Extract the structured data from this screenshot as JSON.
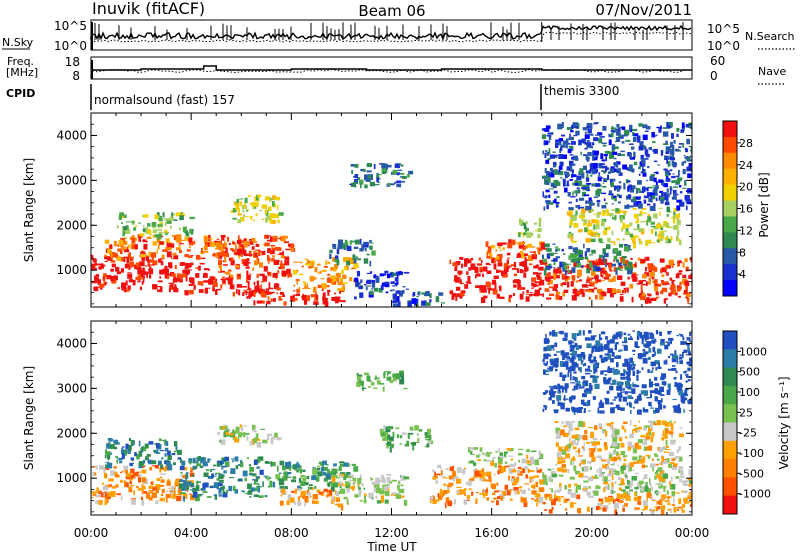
{
  "header": {
    "station": "Inuvik (fitACF)",
    "beam": "Beam 06",
    "date": "07/Nov/2011"
  },
  "top_panels": {
    "nsky_label": "N.Sky",
    "nsky_ticks": [
      "10^5",
      "10^0"
    ],
    "nsearch_label": "N.Search",
    "nsearch_ticks": [
      "10^5",
      "10^0"
    ],
    "freq_label_1": "Freq.",
    "freq_label_2": "[MHz]",
    "freq_ticks": [
      "18",
      "8"
    ],
    "nave_label": "Nave",
    "nave_ticks": [
      "60",
      "0"
    ],
    "cpid_label": "CPID",
    "cpid_entries": [
      {
        "text": "normalsound (fast) 157",
        "start_hour": 0
      },
      {
        "text": "themis 3300",
        "start_hour": 18
      }
    ]
  },
  "x_axis": {
    "label": "Time UT",
    "ticks": [
      "00:00",
      "04:00",
      "08:00",
      "12:00",
      "16:00",
      "20:00",
      "00:00"
    ]
  },
  "chart_data": [
    {
      "type": "heatmap",
      "name": "power",
      "x_range_hours": [
        0,
        24
      ],
      "ylabel": "Slant Range [km]",
      "ylim": [
        180,
        4500
      ],
      "yticks": [
        "1000",
        "2000",
        "3000",
        "4000"
      ],
      "yticks_values": [
        1000,
        2000,
        3000,
        4000
      ],
      "colorbar": {
        "label": "Power [dB]",
        "ticks": [
          "28",
          "24",
          "20",
          "16",
          "12",
          "8",
          "4"
        ],
        "colors": [
          "#f01010",
          "#ff4a00",
          "#ff8a00",
          "#ffb000",
          "#f0d000",
          "#a8d060",
          "#48a848",
          "#2e8a50",
          "#2858a8",
          "#1a2fcf",
          "#0000ff"
        ]
      },
      "blobs": [
        {
          "x0": 0.0,
          "x1": 4.7,
          "y0": 550,
          "y1": 1350,
          "c": 0
        },
        {
          "x0": 0.5,
          "x1": 6.5,
          "y0": 1300,
          "y1": 1800,
          "c": 2
        },
        {
          "x0": 1.0,
          "x1": 4.0,
          "y0": 1800,
          "y1": 2300,
          "c": 6
        },
        {
          "x0": 4.5,
          "x1": 7.5,
          "y0": 500,
          "y1": 900,
          "c": 0
        },
        {
          "x0": 5.0,
          "x1": 8.0,
          "y0": 900,
          "y1": 1800,
          "c": 1
        },
        {
          "x0": 5.5,
          "x1": 7.5,
          "y0": 2100,
          "y1": 2700,
          "c": 5
        },
        {
          "x0": 6.0,
          "x1": 10.0,
          "y0": 300,
          "y1": 600,
          "c": 0
        },
        {
          "x0": 8.0,
          "x1": 10.5,
          "y0": 600,
          "y1": 1300,
          "c": 3
        },
        {
          "x0": 9.5,
          "x1": 11.2,
          "y0": 1200,
          "y1": 1700,
          "c": 8
        },
        {
          "x0": 10.3,
          "x1": 12.8,
          "y0": 2900,
          "y1": 3400,
          "c": 8
        },
        {
          "x0": 10.5,
          "x1": 12.5,
          "y0": 400,
          "y1": 1000,
          "c": 9
        },
        {
          "x0": 12.0,
          "x1": 14.0,
          "y0": 250,
          "y1": 600,
          "c": 9
        },
        {
          "x0": 14.3,
          "x1": 18.0,
          "y0": 400,
          "y1": 1300,
          "c": 0
        },
        {
          "x0": 15.5,
          "x1": 18.0,
          "y0": 1300,
          "y1": 1700,
          "c": 2
        },
        {
          "x0": 17.0,
          "x1": 18.0,
          "y0": 1800,
          "y1": 2200,
          "c": 6
        },
        {
          "x0": 18.0,
          "x1": 24.0,
          "y0": 350,
          "y1": 1300,
          "c": 1
        },
        {
          "x0": 18.0,
          "x1": 21.5,
          "y0": 1000,
          "y1": 1600,
          "c": 8
        },
        {
          "x0": 19.0,
          "x1": 23.5,
          "y0": 1600,
          "y1": 2400,
          "c": 5
        },
        {
          "x0": 18.0,
          "x1": 24.0,
          "y0": 2400,
          "y1": 4300,
          "c": 9
        }
      ]
    },
    {
      "type": "heatmap",
      "name": "velocity",
      "x_range_hours": [
        0,
        24
      ],
      "ylabel": "Slant Range [km]",
      "ylim": [
        180,
        4500
      ],
      "yticks": [
        "1000",
        "2000",
        "3000",
        "4000"
      ],
      "yticks_values": [
        1000,
        2000,
        3000,
        4000
      ],
      "colorbar": {
        "label": "Velocity [m s⁻¹]",
        "ticks": [
          "1000",
          "500",
          "100",
          "25",
          "-25",
          "-100",
          "-500",
          "-1000"
        ],
        "colors": [
          "#2050c0",
          "#2c7ca8",
          "#2e8a50",
          "#48a848",
          "#78c050",
          "#c8c8c8",
          "#ffa000",
          "#ff8000",
          "#ff5000",
          "#f01010"
        ]
      },
      "blobs": [
        {
          "x0": 0.0,
          "x1": 4.0,
          "y0": 500,
          "y1": 1300,
          "c": 7
        },
        {
          "x0": 0.5,
          "x1": 3.5,
          "y0": 1300,
          "y1": 1900,
          "c": 2
        },
        {
          "x0": 3.5,
          "x1": 7.0,
          "y0": 600,
          "y1": 1500,
          "c": 2
        },
        {
          "x0": 5.0,
          "x1": 7.5,
          "y0": 1800,
          "y1": 2200,
          "c": 5
        },
        {
          "x0": 7.0,
          "x1": 10.5,
          "y0": 800,
          "y1": 1400,
          "c": 3
        },
        {
          "x0": 7.5,
          "x1": 10.0,
          "y0": 400,
          "y1": 800,
          "c": 7
        },
        {
          "x0": 9.5,
          "x1": 12.5,
          "y0": 500,
          "y1": 1100,
          "c": 5
        },
        {
          "x0": 10.5,
          "x1": 12.5,
          "y0": 3000,
          "y1": 3400,
          "c": 4
        },
        {
          "x0": 11.5,
          "x1": 13.5,
          "y0": 1700,
          "y1": 2200,
          "c": 4
        },
        {
          "x0": 13.5,
          "x1": 18.0,
          "y0": 450,
          "y1": 1300,
          "c": 7
        },
        {
          "x0": 15.0,
          "x1": 18.0,
          "y0": 1300,
          "y1": 1700,
          "c": 5
        },
        {
          "x0": 18.0,
          "x1": 24.0,
          "y0": 700,
          "y1": 1300,
          "c": 5
        },
        {
          "x0": 18.0,
          "x1": 24.0,
          "y0": 300,
          "y1": 700,
          "c": 7
        },
        {
          "x0": 18.5,
          "x1": 23.5,
          "y0": 1300,
          "y1": 2300,
          "c": 6
        },
        {
          "x0": 18.0,
          "x1": 24.0,
          "y0": 2500,
          "y1": 4300,
          "c": 0
        }
      ]
    }
  ]
}
